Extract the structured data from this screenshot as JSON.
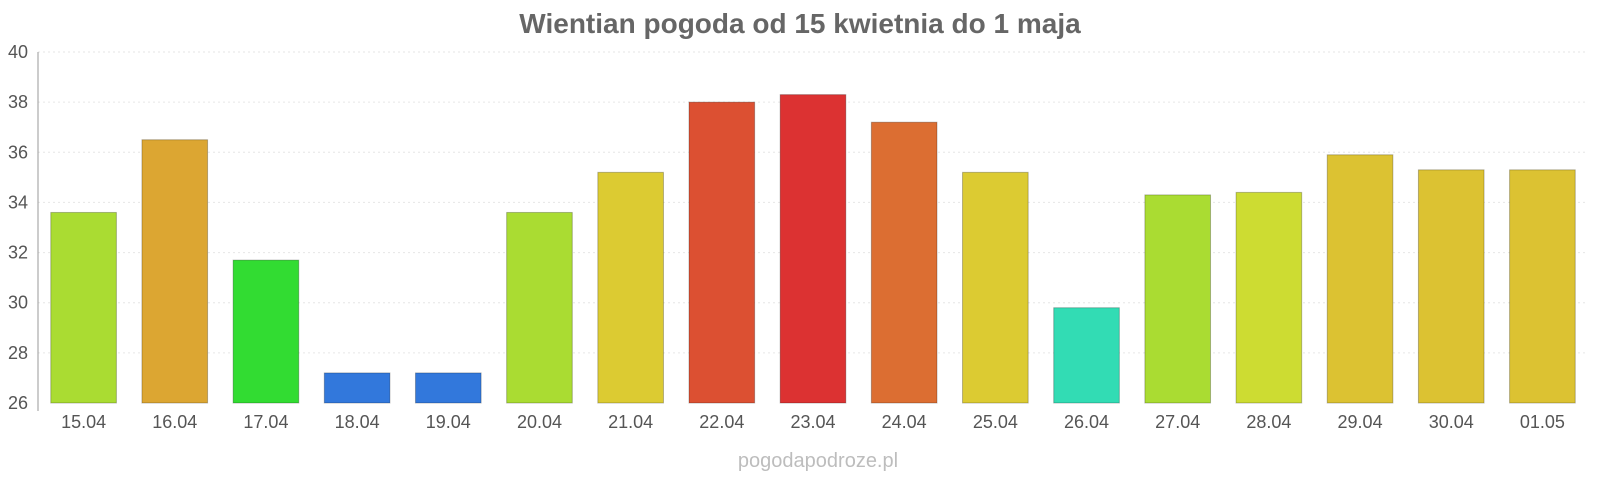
{
  "chart_data": {
    "type": "bar",
    "title": "Wientian pogoda od 15 kwietnia do 1 maja",
    "xlabel": "",
    "ylabel": "",
    "ylim": [
      26,
      40
    ],
    "yticks": [
      26,
      28,
      30,
      32,
      34,
      36,
      38,
      40
    ],
    "grid": true,
    "categories": [
      "15.04",
      "16.04",
      "17.04",
      "18.04",
      "19.04",
      "20.04",
      "21.04",
      "22.04",
      "23.04",
      "24.04",
      "25.04",
      "26.04",
      "27.04",
      "28.04",
      "29.04",
      "30.04",
      "01.05"
    ],
    "values": [
      33.6,
      36.5,
      31.7,
      27.2,
      27.2,
      33.6,
      35.2,
      38.0,
      38.3,
      37.2,
      35.2,
      29.8,
      34.3,
      34.4,
      35.9,
      35.3,
      35.3
    ],
    "colors": [
      "#aadc32",
      "#dca632",
      "#32dc32",
      "#3278dc",
      "#3278dc",
      "#aadc32",
      "#dccb32",
      "#dc5032",
      "#dc3232",
      "#dc6e32",
      "#dccb32",
      "#32dcb4",
      "#aadc32",
      "#cddc32",
      "#dcc232",
      "#dcc232",
      "#dcc232"
    ]
  },
  "credit": "pogodapodroze.pl"
}
